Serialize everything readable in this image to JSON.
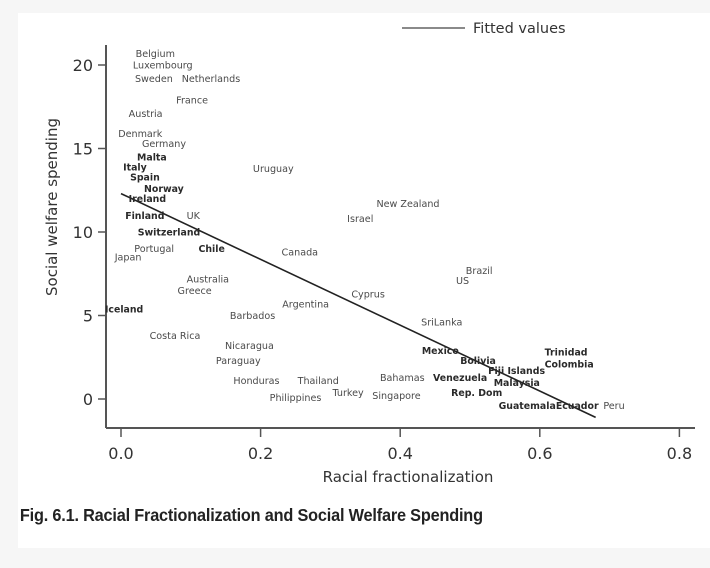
{
  "caption": "Fig. 6.1.  Racial Fractionalization and Social Welfare Spending",
  "chart_data": {
    "type": "scatter",
    "title": "",
    "xlabel": "Racial fractionalization",
    "ylabel": "Social welfare spending",
    "xlim": [
      0.0,
      0.8
    ],
    "ylim": [
      0,
      20
    ],
    "xticks": [
      "0.0",
      "0.2",
      "0.4",
      "0.6",
      "0.8"
    ],
    "xtick_values": [
      0.0,
      0.2,
      0.4,
      0.6,
      0.8
    ],
    "yticks": [
      "0",
      "5",
      "10",
      "15",
      "20"
    ],
    "ytick_values": [
      0,
      5,
      10,
      15,
      20
    ],
    "grid": false,
    "legend": {
      "position": "top-right",
      "entries": [
        {
          "name": "Fitted values",
          "type": "line"
        }
      ]
    },
    "marker": "country-name-labels",
    "fitted_line": {
      "name": "Fitted values",
      "x": [
        0.0,
        0.68
      ],
      "y": [
        12.3,
        -1.1
      ]
    },
    "points": [
      {
        "label": "Belgium",
        "x": 0.021,
        "y": 20.7
      },
      {
        "label": "Luxembourg",
        "x": 0.017,
        "y": 20.0
      },
      {
        "label": "Sweden",
        "x": 0.02,
        "y": 19.2
      },
      {
        "label": "Netherlands",
        "x": 0.087,
        "y": 19.2
      },
      {
        "label": "France",
        "x": 0.079,
        "y": 17.9
      },
      {
        "label": "Austria",
        "x": 0.011,
        "y": 17.1
      },
      {
        "label": "Denmark",
        "x": -0.004,
        "y": 15.9
      },
      {
        "label": "Germany",
        "x": 0.03,
        "y": 15.3
      },
      {
        "label": "Malta",
        "x": 0.023,
        "y": 14.5,
        "em": true
      },
      {
        "label": "Italy",
        "x": 0.003,
        "y": 13.9,
        "em": true
      },
      {
        "label": "Spain",
        "x": 0.013,
        "y": 13.3,
        "em": true
      },
      {
        "label": "Norway",
        "x": 0.033,
        "y": 12.6,
        "em": true
      },
      {
        "label": "Ireland",
        "x": 0.011,
        "y": 12.0,
        "em": true
      },
      {
        "label": "Finland",
        "x": 0.006,
        "y": 11.0,
        "em": true
      },
      {
        "label": "UK",
        "x": 0.094,
        "y": 11.0
      },
      {
        "label": "Switzerland",
        "x": 0.024,
        "y": 10.0,
        "em": true
      },
      {
        "label": "Portugal",
        "x": 0.019,
        "y": 9.0
      },
      {
        "label": "Japan",
        "x": -0.009,
        "y": 8.5
      },
      {
        "label": "Chile",
        "x": 0.111,
        "y": 9.0,
        "em": true
      },
      {
        "label": "Uruguay",
        "x": 0.189,
        "y": 13.8
      },
      {
        "label": "Canada",
        "x": 0.23,
        "y": 8.8
      },
      {
        "label": "New Zealand",
        "x": 0.366,
        "y": 11.7
      },
      {
        "label": "Israel",
        "x": 0.324,
        "y": 10.8
      },
      {
        "label": "Brazil",
        "x": 0.494,
        "y": 7.7
      },
      {
        "label": "US",
        "x": 0.48,
        "y": 7.1
      },
      {
        "label": "Cyprus",
        "x": 0.33,
        "y": 6.3
      },
      {
        "label": "Argentina",
        "x": 0.231,
        "y": 5.7
      },
      {
        "label": "Australia",
        "x": 0.094,
        "y": 7.2
      },
      {
        "label": "Greece",
        "x": 0.081,
        "y": 6.5
      },
      {
        "label": "Iceland",
        "x": -0.023,
        "y": 5.4,
        "em": true
      },
      {
        "label": "Barbados",
        "x": 0.156,
        "y": 5.0
      },
      {
        "label": "Costa Rica",
        "x": 0.041,
        "y": 3.8
      },
      {
        "label": "Nicaragua",
        "x": 0.149,
        "y": 3.2
      },
      {
        "label": "Paraguay",
        "x": 0.136,
        "y": 2.3
      },
      {
        "label": "Honduras",
        "x": 0.161,
        "y": 1.1
      },
      {
        "label": "Thailand",
        "x": 0.253,
        "y": 1.1
      },
      {
        "label": "Philippines",
        "x": 0.213,
        "y": 0.1
      },
      {
        "label": "Turkey",
        "x": 0.303,
        "y": 0.4
      },
      {
        "label": "Singapore",
        "x": 0.36,
        "y": 0.2
      },
      {
        "label": "Bahamas",
        "x": 0.371,
        "y": 1.3
      },
      {
        "label": "SriLanka",
        "x": 0.43,
        "y": 4.6
      },
      {
        "label": "Mexico",
        "x": 0.431,
        "y": 2.9,
        "em": true
      },
      {
        "label": "Bolivia",
        "x": 0.486,
        "y": 2.3,
        "em": true
      },
      {
        "label": "Venezuela",
        "x": 0.447,
        "y": 1.3,
        "em": true
      },
      {
        "label": "Fiji Islands",
        "x": 0.526,
        "y": 1.7,
        "em": true
      },
      {
        "label": "Malaysia",
        "x": 0.534,
        "y": 1.0,
        "em": true
      },
      {
        "label": "Rep. Dom",
        "x": 0.473,
        "y": 0.4,
        "em": true
      },
      {
        "label": "Guatemala",
        "x": 0.541,
        "y": -0.4,
        "em": true
      },
      {
        "label": "Ecuador",
        "x": 0.623,
        "y": -0.4,
        "em": true
      },
      {
        "label": "Peru",
        "x": 0.691,
        "y": -0.4
      },
      {
        "label": "Trinidad",
        "x": 0.607,
        "y": 2.8,
        "em": true
      },
      {
        "label": "Colombia",
        "x": 0.607,
        "y": 2.1,
        "em": true
      }
    ]
  }
}
